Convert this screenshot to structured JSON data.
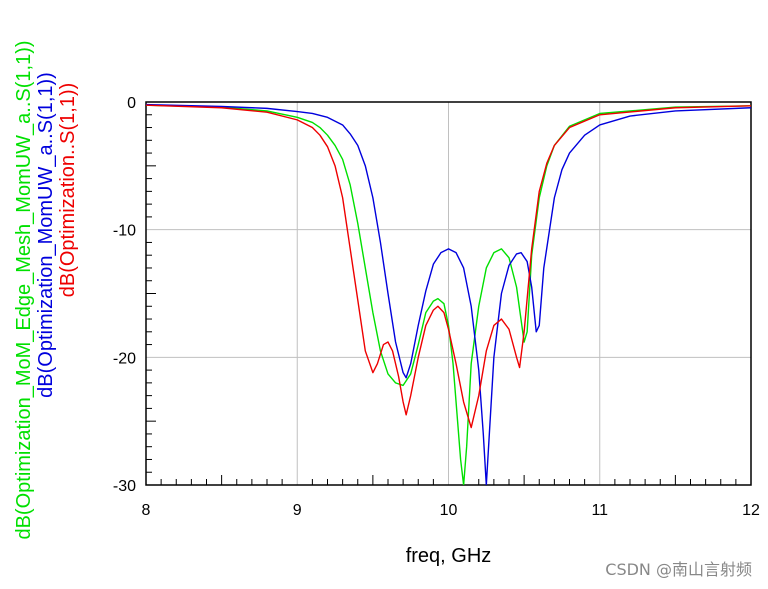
{
  "chart_data": {
    "type": "line",
    "title": "",
    "xlabel": "freq, GHz",
    "ylabel_lines": [
      {
        "text": "dB(Optimization_MoM_Edge_Mesh_MomUW_a..S(1,1))",
        "color": "#00e000"
      },
      {
        "text": "dB(Optimization_MomUW_a..S(1,1))",
        "color": "#0000dd"
      },
      {
        "text": "dB(Optimization..S(1,1))",
        "color": "#ee0000"
      }
    ],
    "xlim": [
      8,
      12
    ],
    "ylim": [
      -30,
      0
    ],
    "xticks": [
      8,
      9,
      10,
      11,
      12
    ],
    "xtick_labels": [
      "8",
      "9",
      "10",
      "11",
      "12"
    ],
    "yticks": [
      0,
      -10,
      -20,
      -30
    ],
    "ytick_labels": [
      "0",
      "-10",
      "-20",
      "-30"
    ],
    "grid": true,
    "series": [
      {
        "name": "dB(Optimization_MoM_Edge_Mesh_MomUW_a..S(1,1))",
        "color": "#00e000",
        "points": [
          [
            8.0,
            -0.25
          ],
          [
            8.5,
            -0.4
          ],
          [
            8.8,
            -0.7
          ],
          [
            9.0,
            -1.2
          ],
          [
            9.1,
            -1.6
          ],
          [
            9.15,
            -2.0
          ],
          [
            9.2,
            -2.6
          ],
          [
            9.25,
            -3.4
          ],
          [
            9.3,
            -4.5
          ],
          [
            9.35,
            -6.5
          ],
          [
            9.4,
            -9.5
          ],
          [
            9.45,
            -13.0
          ],
          [
            9.5,
            -16.5
          ],
          [
            9.55,
            -19.5
          ],
          [
            9.6,
            -21.3
          ],
          [
            9.65,
            -22.0
          ],
          [
            9.7,
            -22.2
          ],
          [
            9.75,
            -21.3
          ],
          [
            9.8,
            -19.0
          ],
          [
            9.85,
            -16.5
          ],
          [
            9.9,
            -15.6
          ],
          [
            9.93,
            -15.4
          ],
          [
            9.97,
            -15.8
          ],
          [
            10.0,
            -17.5
          ],
          [
            10.03,
            -20.5
          ],
          [
            10.06,
            -25.0
          ],
          [
            10.08,
            -28.0
          ],
          [
            10.1,
            -30.0
          ],
          [
            10.12,
            -27.0
          ],
          [
            10.15,
            -20.5
          ],
          [
            10.2,
            -16.0
          ],
          [
            10.25,
            -13.0
          ],
          [
            10.3,
            -11.8
          ],
          [
            10.35,
            -11.5
          ],
          [
            10.4,
            -12.2
          ],
          [
            10.45,
            -14.5
          ],
          [
            10.5,
            -18.8
          ],
          [
            10.52,
            -18.0
          ],
          [
            10.55,
            -12.0
          ],
          [
            10.6,
            -7.5
          ],
          [
            10.65,
            -5.0
          ],
          [
            10.7,
            -3.4
          ],
          [
            10.8,
            -1.9
          ],
          [
            11.0,
            -0.9
          ],
          [
            11.5,
            -0.4
          ],
          [
            12.0,
            -0.3
          ]
        ]
      },
      {
        "name": "dB(Optimization_MomUW_a..S(1,1))",
        "color": "#0000dd",
        "points": [
          [
            8.0,
            -0.2
          ],
          [
            8.5,
            -0.35
          ],
          [
            8.8,
            -0.5
          ],
          [
            9.0,
            -0.75
          ],
          [
            9.1,
            -0.9
          ],
          [
            9.2,
            -1.2
          ],
          [
            9.3,
            -1.8
          ],
          [
            9.35,
            -2.5
          ],
          [
            9.4,
            -3.4
          ],
          [
            9.45,
            -5.0
          ],
          [
            9.5,
            -7.5
          ],
          [
            9.55,
            -11.0
          ],
          [
            9.6,
            -15.0
          ],
          [
            9.65,
            -18.8
          ],
          [
            9.7,
            -21.2
          ],
          [
            9.72,
            -21.6
          ],
          [
            9.75,
            -20.5
          ],
          [
            9.8,
            -17.5
          ],
          [
            9.85,
            -14.8
          ],
          [
            9.9,
            -12.7
          ],
          [
            9.95,
            -11.8
          ],
          [
            10.0,
            -11.5
          ],
          [
            10.05,
            -11.8
          ],
          [
            10.1,
            -13.0
          ],
          [
            10.15,
            -16.0
          ],
          [
            10.2,
            -21.0
          ],
          [
            10.23,
            -26.0
          ],
          [
            10.25,
            -30.0
          ],
          [
            10.27,
            -26.0
          ],
          [
            10.3,
            -20.0
          ],
          [
            10.35,
            -15.0
          ],
          [
            10.4,
            -12.8
          ],
          [
            10.45,
            -11.9
          ],
          [
            10.48,
            -11.8
          ],
          [
            10.52,
            -12.5
          ],
          [
            10.55,
            -14.5
          ],
          [
            10.58,
            -18.0
          ],
          [
            10.6,
            -17.5
          ],
          [
            10.63,
            -13.0
          ],
          [
            10.7,
            -7.5
          ],
          [
            10.75,
            -5.3
          ],
          [
            10.8,
            -4.0
          ],
          [
            10.9,
            -2.6
          ],
          [
            11.0,
            -1.8
          ],
          [
            11.2,
            -1.1
          ],
          [
            11.5,
            -0.7
          ],
          [
            12.0,
            -0.45
          ]
        ]
      },
      {
        "name": "dB(Optimization..S(1,1))",
        "color": "#ee0000",
        "points": [
          [
            8.0,
            -0.25
          ],
          [
            8.5,
            -0.45
          ],
          [
            8.8,
            -0.8
          ],
          [
            9.0,
            -1.4
          ],
          [
            9.1,
            -2.0
          ],
          [
            9.15,
            -2.6
          ],
          [
            9.2,
            -3.5
          ],
          [
            9.25,
            -5.0
          ],
          [
            9.3,
            -7.5
          ],
          [
            9.35,
            -11.5
          ],
          [
            9.4,
            -15.5
          ],
          [
            9.45,
            -19.5
          ],
          [
            9.5,
            -21.2
          ],
          [
            9.53,
            -20.5
          ],
          [
            9.57,
            -19.0
          ],
          [
            9.6,
            -18.8
          ],
          [
            9.63,
            -19.5
          ],
          [
            9.67,
            -21.5
          ],
          [
            9.7,
            -23.5
          ],
          [
            9.72,
            -24.5
          ],
          [
            9.75,
            -23.0
          ],
          [
            9.8,
            -20.0
          ],
          [
            9.85,
            -17.5
          ],
          [
            9.9,
            -16.3
          ],
          [
            9.93,
            -16.0
          ],
          [
            9.97,
            -16.5
          ],
          [
            10.0,
            -17.8
          ],
          [
            10.05,
            -20.5
          ],
          [
            10.1,
            -23.5
          ],
          [
            10.15,
            -25.5
          ],
          [
            10.2,
            -23.0
          ],
          [
            10.25,
            -19.5
          ],
          [
            10.3,
            -17.5
          ],
          [
            10.35,
            -17.0
          ],
          [
            10.4,
            -17.8
          ],
          [
            10.45,
            -20.0
          ],
          [
            10.47,
            -20.8
          ],
          [
            10.5,
            -18.0
          ],
          [
            10.55,
            -11.5
          ],
          [
            10.6,
            -7.0
          ],
          [
            10.65,
            -4.8
          ],
          [
            10.7,
            -3.4
          ],
          [
            10.8,
            -2.0
          ],
          [
            11.0,
            -1.0
          ],
          [
            11.5,
            -0.45
          ],
          [
            12.0,
            -0.3
          ]
        ]
      }
    ]
  },
  "watermark": "CSDN @南山言射频"
}
